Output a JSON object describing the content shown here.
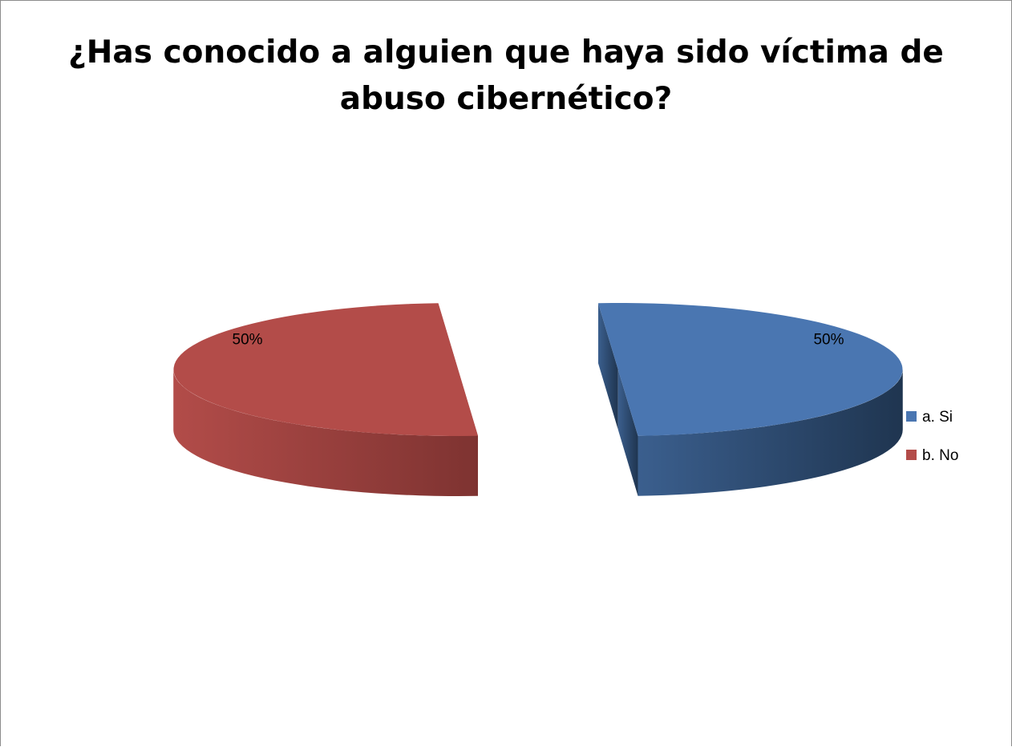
{
  "chart_data": {
    "type": "pie",
    "title": "¿Has conocido a alguien que haya sido víctima de abuso cibernético?",
    "categories": [
      "a. Si",
      "b. No"
    ],
    "values": [
      50,
      50
    ],
    "data_labels": [
      "50%",
      "50%"
    ],
    "colors": [
      "#4a76b1",
      "#b34c49"
    ],
    "legend": {
      "position": "right",
      "entries": [
        "a. Si",
        "b. No"
      ]
    },
    "style": "3d-exploded"
  }
}
